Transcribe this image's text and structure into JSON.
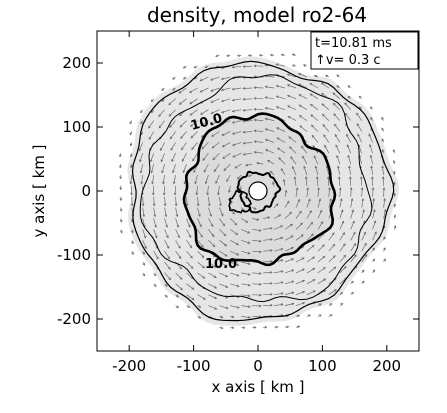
{
  "chart_data": {
    "type": "contour",
    "title": "density, model ro2-64",
    "xlabel": "x axis [ km ]",
    "ylabel": "y axis [ km ]",
    "xlim": [
      -250,
      250
    ],
    "ylim": [
      -250,
      250
    ],
    "x_ticks": [
      -200,
      -100,
      0,
      100,
      200
    ],
    "y_ticks": [
      -200,
      -100,
      0,
      100,
      200
    ],
    "legend": {
      "time": "t=10.81 ms",
      "velocity_ref": "↑v=  0.3 c",
      "placement": "top-right"
    },
    "contour_labels": [
      "10.0",
      "10.0"
    ],
    "contours": [
      {
        "level": "outer",
        "approx_radius_km": 200
      },
      {
        "level": "10.0",
        "approx_radius_km": 115,
        "emphasis": "thick"
      },
      {
        "level": "inner",
        "approx_radius_km": 30
      }
    ],
    "velocity_field": "counter-clockwise rotation",
    "colors": {
      "contour": "#000000",
      "shading": "#e6e6e6",
      "arrows": "#6a6a6a"
    }
  }
}
